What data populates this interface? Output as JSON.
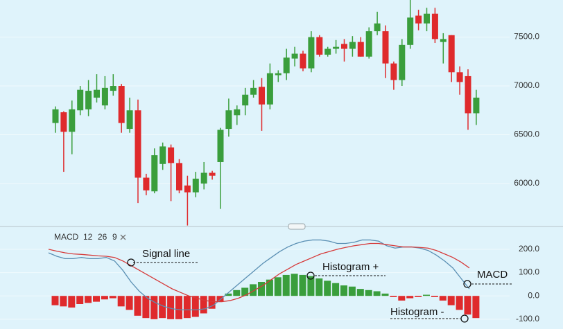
{
  "chart_data": [
    {
      "type": "candlestick",
      "up_color": "#3a9e3c",
      "down_color": "#df2a2c",
      "grid": true,
      "ylim": [
        5560,
        7880
      ],
      "yticks": [
        {
          "value": 6000,
          "label": "6000.0"
        },
        {
          "value": 6500,
          "label": "6500.0"
        },
        {
          "value": 7000,
          "label": "7000.0"
        },
        {
          "value": 7500,
          "label": "7500.0"
        }
      ],
      "open": [
        6620,
        6730,
        6530,
        6750,
        6760,
        6880,
        6800,
        6950,
        7000,
        6560,
        6750,
        6060,
        5920,
        6200,
        6370,
        6210,
        5980,
        5910,
        6000,
        6110,
        6220,
        6560,
        6700,
        6800,
        6910,
        6990,
        6810,
        7110,
        7130,
        7280,
        7330,
        7180,
        7500,
        7320,
        7380,
        7430,
        7380,
        7450,
        7300,
        7560,
        7560,
        7230,
        7060,
        7420,
        7720,
        7640,
        7740,
        7450,
        7520,
        7140,
        7100,
        6720
      ],
      "high": [
        6790,
        6740,
        6850,
        7000,
        7060,
        7120,
        7100,
        7120,
        7020,
        6880,
        6860,
        6100,
        6360,
        6420,
        6400,
        6250,
        6080,
        6120,
        6220,
        6130,
        6570,
        6870,
        6800,
        6980,
        7060,
        7080,
        7230,
        7160,
        7380,
        7400,
        7360,
        7560,
        7520,
        7400,
        7470,
        7480,
        7510,
        7500,
        7600,
        7760,
        7620,
        7250,
        7480,
        7880,
        7780,
        7800,
        7800,
        7540,
        7520,
        7200,
        7170,
        6960
      ],
      "low": [
        6520,
        6120,
        6300,
        6700,
        6690,
        6830,
        6760,
        6900,
        6520,
        6520,
        5800,
        5880,
        5900,
        6140,
        5820,
        5900,
        5570,
        5860,
        5940,
        6040,
        5740,
        6480,
        6600,
        6700,
        6880,
        6540,
        6760,
        7040,
        7060,
        7200,
        7150,
        7140,
        7300,
        7300,
        7330,
        7250,
        7300,
        7300,
        7280,
        7520,
        7080,
        6960,
        7000,
        7380,
        7570,
        7560,
        7440,
        7230,
        7040,
        6910,
        6550,
        6600
      ],
      "close": [
        6760,
        6530,
        6760,
        6960,
        6950,
        6960,
        6980,
        7000,
        6620,
        6750,
        6060,
        5930,
        6290,
        6380,
        6210,
        5930,
        5910,
        6050,
        6110,
        6080,
        6550,
        6750,
        6760,
        6910,
        6980,
        6810,
        7130,
        7130,
        7290,
        7330,
        7180,
        7500,
        7320,
        7380,
        7400,
        7380,
        7450,
        7300,
        7560,
        7640,
        7230,
        7060,
        7420,
        7700,
        7640,
        7740,
        7480,
        7480,
        7140,
        7040,
        6720,
        6880
      ]
    },
    {
      "type": "macd",
      "indicator": "MACD",
      "params": [
        12,
        26,
        9
      ],
      "grid": true,
      "ylim": [
        -142,
        280
      ],
      "yticks": [
        {
          "value": -100,
          "label": "-100.0"
        },
        {
          "value": 0,
          "label": "0.0"
        },
        {
          "value": 100,
          "label": "100.0"
        },
        {
          "value": 200,
          "label": "200.0"
        }
      ],
      "annotations": [
        "Signal line",
        "Histogram +",
        "MACD",
        "Histogram -"
      ],
      "series": [
        {
          "type": "bar",
          "values": [
            -40,
            -45,
            -50,
            -35,
            -30,
            -25,
            -15,
            -10,
            -45,
            -60,
            -85,
            -95,
            -100,
            -95,
            -100,
            -100,
            -95,
            -90,
            -75,
            -55,
            -25,
            10,
            25,
            35,
            50,
            60,
            70,
            80,
            90,
            95,
            90,
            85,
            75,
            65,
            55,
            45,
            40,
            30,
            25,
            20,
            10,
            -5,
            -20,
            -10,
            -5,
            5,
            -5,
            -20,
            -40,
            -60,
            -80,
            -95
          ]
        },
        {
          "type": "line",
          "color": "#5a8fb3",
          "values": [
            185,
            170,
            160,
            160,
            165,
            160,
            160,
            165,
            150,
            110,
            60,
            20,
            -10,
            -30,
            -45,
            -55,
            -60,
            -60,
            -60,
            -55,
            -40,
            -10,
            20,
            50,
            80,
            110,
            140,
            165,
            190,
            210,
            225,
            235,
            240,
            240,
            235,
            225,
            225,
            230,
            240,
            240,
            235,
            215,
            205,
            210,
            210,
            205,
            195,
            175,
            150,
            120,
            75,
            30
          ]
        },
        {
          "type": "line",
          "color": "#d63a3a",
          "values": [
            200,
            192,
            185,
            180,
            178,
            175,
            172,
            170,
            165,
            150,
            130,
            110,
            90,
            70,
            50,
            30,
            15,
            0,
            -10,
            -20,
            -25,
            -25,
            -20,
            -10,
            5,
            25,
            45,
            70,
            95,
            115,
            135,
            150,
            165,
            180,
            190,
            200,
            208,
            215,
            220,
            225,
            225,
            220,
            215,
            210,
            210,
            208,
            205,
            195,
            180,
            165,
            145,
            120
          ]
        }
      ]
    }
  ]
}
